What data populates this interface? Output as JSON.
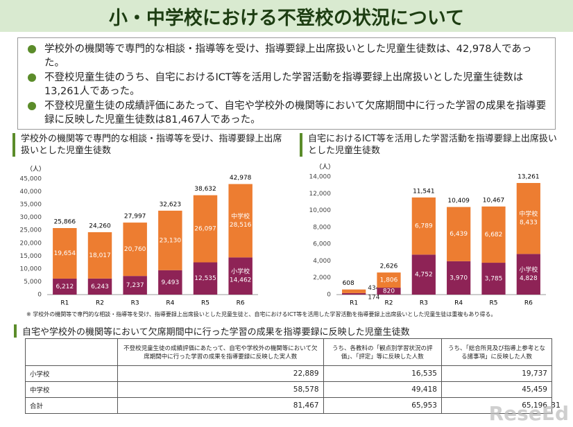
{
  "title": "小・中学校における不登校の状況について",
  "bullets": [
    "学校外の機関等で専門的な相談・指導等を受け、指導要録上出席扱いとした児童生徒数は、42,978人であった。",
    "不登校児童生徒のうち、自宅におけるICT等を活用した学習活動を指導要録上出席扱いとした児童生徒数は13,261人であった。",
    "不登校児童生徒の成績評価にあたって、自宅や学校外の機関等において欠席期間中に行った学習の成果を指導要録に反映した児童生徒数は81,467人であった。"
  ],
  "chart_data": [
    {
      "type": "bar",
      "stacked": true,
      "title": "学校外の機関等で専門的な相談・指導等を受け、指導要録上出席扱いとした児童生徒数",
      "y_label": "（人）",
      "categories": [
        "R1",
        "R2",
        "R3",
        "R4",
        "R5",
        "R6"
      ],
      "series": [
        {
          "name": "小学校",
          "color": "#8e2356",
          "values": [
            6212,
            6243,
            7237,
            9493,
            12535,
            14462
          ],
          "value_labels": [
            "6,212",
            "6,243",
            "7,237",
            "9,493",
            "12,535",
            "14,462"
          ]
        },
        {
          "name": "中学校",
          "color": "#ed7d31",
          "values": [
            19654,
            18017,
            20760,
            23130,
            26097,
            28516
          ],
          "value_labels": [
            "19,654",
            "18,017",
            "20,760",
            "23,130",
            "26,097",
            "28,516"
          ]
        }
      ],
      "totals": [
        25866,
        24260,
        27997,
        32623,
        38632,
        42978
      ],
      "total_labels": [
        "25,866",
        "24,260",
        "27,997",
        "32,623",
        "38,632",
        "42,978"
      ],
      "ylim": [
        0,
        45000
      ],
      "yticks": [
        0,
        {
          "value": 5000,
          "label": "5,000"
        },
        {
          "value": 10000,
          "label": "10,000"
        },
        {
          "value": 15000,
          "label": "15,000"
        },
        {
          "value": 20000,
          "label": "20,000"
        },
        {
          "value": 25000,
          "label": "25,000"
        },
        {
          "value": 30000,
          "label": "30,000"
        },
        {
          "value": 35000,
          "label": "35,000"
        },
        {
          "value": 40000,
          "label": "40,000"
        },
        {
          "value": 45000,
          "label": "45,000"
        }
      ]
    },
    {
      "type": "bar",
      "stacked": true,
      "title": "自宅におけるICT等を活用した学習活動を指導要録上出席扱いとした児童生徒数",
      "y_label": "（人）",
      "categories": [
        "R1",
        "R2",
        "R3",
        "R4",
        "R5",
        "R6"
      ],
      "series": [
        {
          "name": "小学校",
          "color": "#8e2356",
          "values": [
            174,
            820,
            4752,
            3970,
            3785,
            4828
          ],
          "value_labels": [
            "174",
            "820",
            "4,752",
            "3,970",
            "3,785",
            "4,828"
          ]
        },
        {
          "name": "中学校",
          "color": "#ed7d31",
          "values": [
            434,
            1806,
            6789,
            6439,
            6682,
            8433
          ],
          "value_labels": [
            "434",
            "1,806",
            "6,789",
            "6,439",
            "6,682",
            "8,433"
          ]
        }
      ],
      "totals": [
        608,
        2626,
        11541,
        10409,
        10467,
        13261
      ],
      "total_labels": [
        "608",
        "2,626",
        "11,541",
        "10,409",
        "10,467",
        "13,261"
      ],
      "ylim": [
        0,
        14000
      ],
      "yticks": [
        0,
        {
          "value": 2000,
          "label": "2,000"
        },
        {
          "value": 4000,
          "label": "4,000"
        },
        {
          "value": 6000,
          "label": "6,000"
        },
        {
          "value": 8000,
          "label": "8,000"
        },
        {
          "value": 10000,
          "label": "10,000"
        },
        {
          "value": 12000,
          "label": "12,000"
        },
        {
          "value": 14000,
          "label": "14,000"
        }
      ]
    }
  ],
  "note": "※ 学校外の機関等で専門的な相談・指導等を受け、指導要録上出席扱いとした児童生徒と、自宅におけるICT等を活用した学習活動を指導要録上出席扱いとした児童生徒は重複もあり得る。",
  "table": {
    "title": "自宅や学校外の機関等において欠席期間中に行った学習の成果を指導要録に反映した児童生徒数",
    "headers": [
      "不登校児童生徒の成績評価にあたって、自宅や学校外の機関等において欠席期間中に行った学習の成果を指導要録に反映した実人数",
      "うち、各教科の「観点別学習状況の評価」、「評定」等に反映した人数",
      "うち、「総合所見及び指導上参考となる諸事項」に反映した人数"
    ],
    "rows": [
      [
        "小学校",
        "22,889",
        "16,535",
        "19,737"
      ],
      [
        "中学校",
        "58,578",
        "49,418",
        "45,459"
      ],
      [
        "合計",
        "81,467",
        "65,953",
        "65,196"
      ]
    ]
  },
  "page_number": "31",
  "watermark": "ReseEd"
}
